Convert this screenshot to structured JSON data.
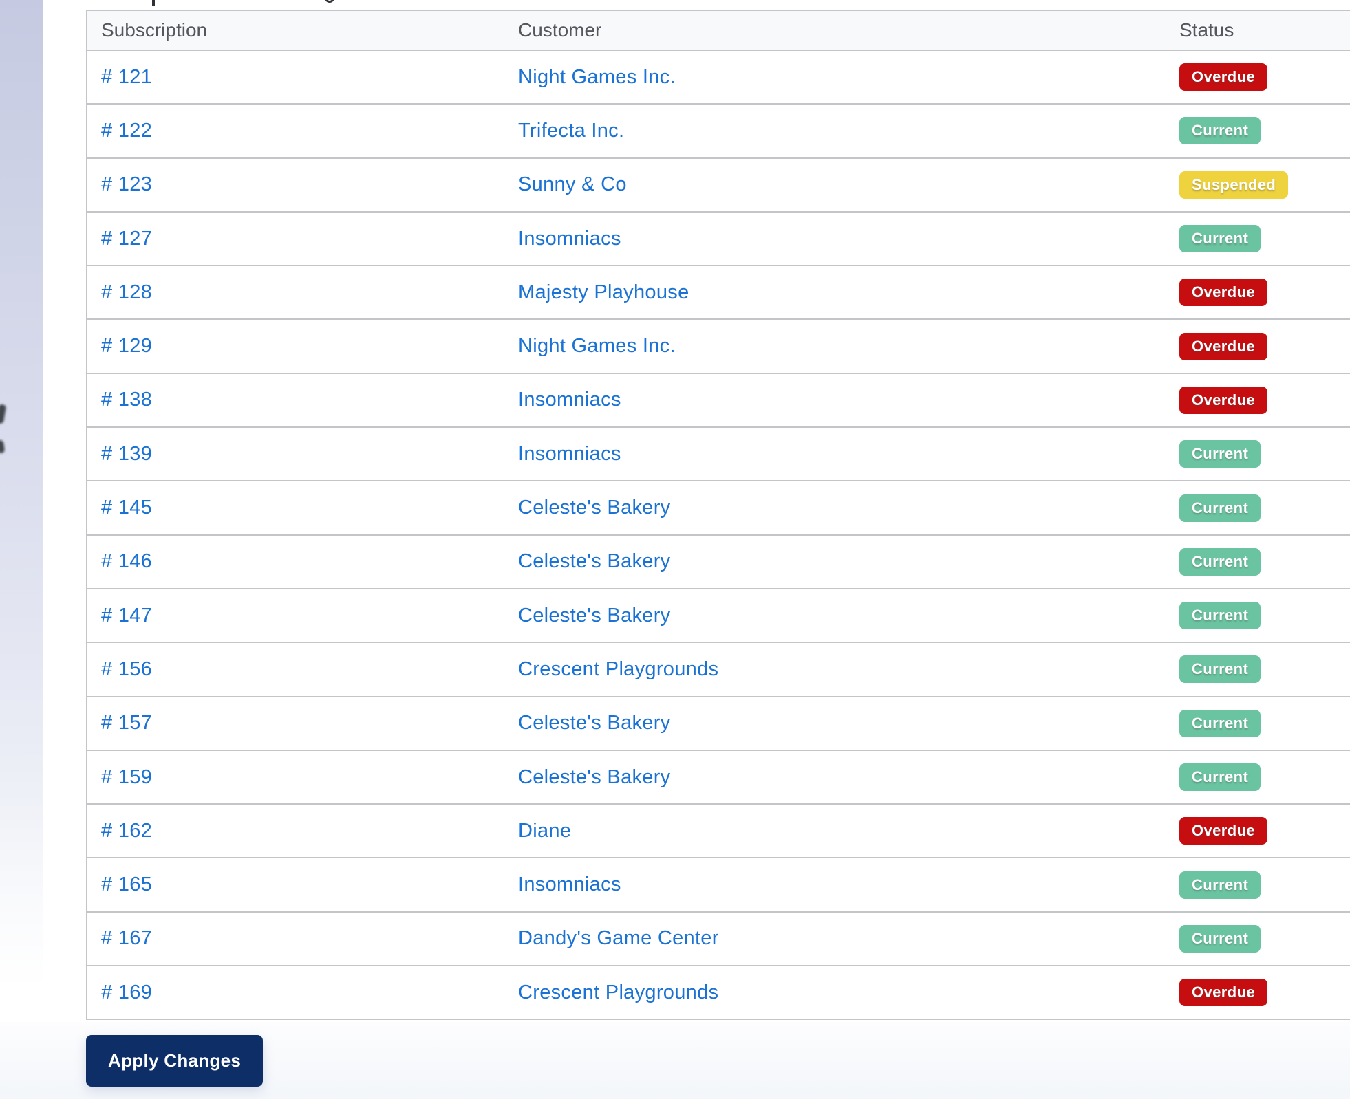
{
  "page": {
    "apply_button_label": "Apply Changes"
  },
  "colors": {
    "link_blue": "#1a72d4",
    "button_navy": "#0d2e66",
    "header_gray": "#54575c"
  },
  "status_colors": {
    "Overdue": "#c60e11",
    "Current": "#6bc4a1",
    "Suspended": "#efd33e"
  },
  "table": {
    "columns": [
      "Subscription",
      "Customer",
      "Status"
    ],
    "rows": [
      {
        "subscription": "# 121",
        "customer": "Night Games Inc.",
        "status": "Overdue"
      },
      {
        "subscription": "# 122",
        "customer": "Trifecta Inc.",
        "status": "Current"
      },
      {
        "subscription": "# 123",
        "customer": "Sunny & Co",
        "status": "Suspended"
      },
      {
        "subscription": "# 127",
        "customer": "Insomniacs",
        "status": "Current"
      },
      {
        "subscription": "# 128",
        "customer": "Majesty Playhouse",
        "status": "Overdue"
      },
      {
        "subscription": "# 129",
        "customer": "Night Games Inc.",
        "status": "Overdue"
      },
      {
        "subscription": "# 138",
        "customer": "Insomniacs",
        "status": "Overdue"
      },
      {
        "subscription": "# 139",
        "customer": "Insomniacs",
        "status": "Current"
      },
      {
        "subscription": "# 145",
        "customer": "Celeste's Bakery",
        "status": "Current"
      },
      {
        "subscription": "# 146",
        "customer": "Celeste's Bakery",
        "status": "Current"
      },
      {
        "subscription": "# 147",
        "customer": "Celeste's Bakery",
        "status": "Current"
      },
      {
        "subscription": "# 156",
        "customer": "Crescent Playgrounds",
        "status": "Current"
      },
      {
        "subscription": "# 157",
        "customer": "Celeste's Bakery",
        "status": "Current"
      },
      {
        "subscription": "# 159",
        "customer": "Celeste's Bakery",
        "status": "Current"
      },
      {
        "subscription": "# 162",
        "customer": "Diane",
        "status": "Overdue"
      },
      {
        "subscription": "# 165",
        "customer": "Insomniacs",
        "status": "Current"
      },
      {
        "subscription": "# 167",
        "customer": "Dandy's Game Center",
        "status": "Current"
      },
      {
        "subscription": "# 169",
        "customer": "Crescent Playgrounds",
        "status": "Overdue"
      }
    ]
  }
}
